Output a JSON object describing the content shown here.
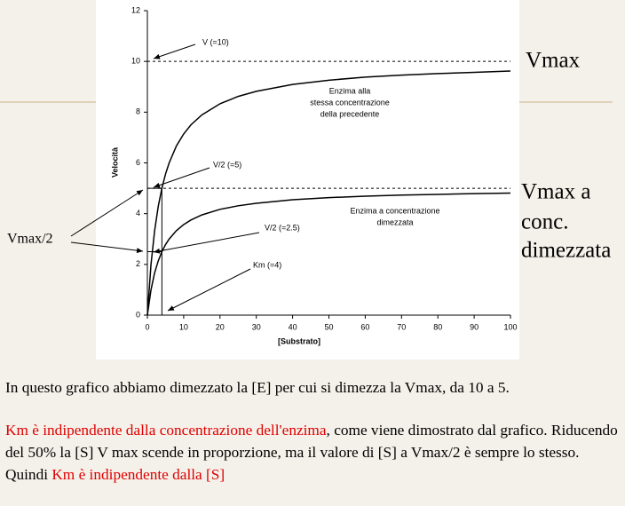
{
  "chart_data": {
    "type": "line",
    "x": [
      0,
      1,
      2,
      3,
      4,
      5,
      6,
      8,
      10,
      12,
      15,
      20,
      25,
      30,
      40,
      50,
      60,
      70,
      80,
      90,
      100
    ],
    "series": [
      {
        "color": "#000000",
        "values": [
          0,
          2,
          3.33,
          4.29,
          5,
          5.56,
          6,
          6.67,
          7.14,
          7.5,
          7.89,
          8.33,
          8.62,
          8.82,
          9.09,
          9.26,
          9.38,
          9.46,
          9.52,
          9.57,
          9.62
        ]
      },
      {
        "color": "#000000",
        "values": [
          0,
          1,
          1.67,
          2.14,
          2.5,
          2.78,
          3,
          3.33,
          3.57,
          3.75,
          3.95,
          4.17,
          4.31,
          4.41,
          4.55,
          4.63,
          4.69,
          4.73,
          4.76,
          4.79,
          4.81
        ]
      }
    ],
    "xlim": [
      0,
      100
    ],
    "xticks": [
      0,
      10,
      20,
      30,
      40,
      50,
      60,
      70,
      80,
      90,
      100
    ],
    "ylim": [
      0,
      12
    ],
    "yticks": [
      0,
      2,
      4,
      6,
      8,
      10,
      12
    ],
    "x_label": "[Substrato]",
    "y_label": "Velocità",
    "dashed_lines": [
      10,
      5
    ],
    "guide_x": 4,
    "guide_y": [
      5,
      2.5
    ],
    "annotations": [
      "V (=10)",
      "V/2 (=5)",
      "V/2 (=2.5)",
      "Km (=4)",
      [
        "Enzima alla",
        "stessa concentrazione",
        "della precedente"
      ],
      [
        "Enzima a concentrazione",
        "dimezzata"
      ]
    ]
  },
  "slide": {
    "label_vmax": "Vmax",
    "label_vmax_half_conc": [
      "Vmax a",
      "conc.",
      "dimezzata"
    ],
    "label_vmax_2": "Vmax/2",
    "paragraph_1": "In questo grafico abbiamo dimezzato la [E] per cui si dimezza la Vmax, da 10 a 5.",
    "paragraph_2": [
      "Km è indipendente dalla concentrazione dell'enzima",
      ", come viene dimostrato dal grafico. Riducendo del 50% la [S] V max scende in proporzione, ma il valore di [S] a Vmax/2 è sempre lo stesso. Quindi ",
      "Km è indipendente dalla [S]"
    ]
  }
}
